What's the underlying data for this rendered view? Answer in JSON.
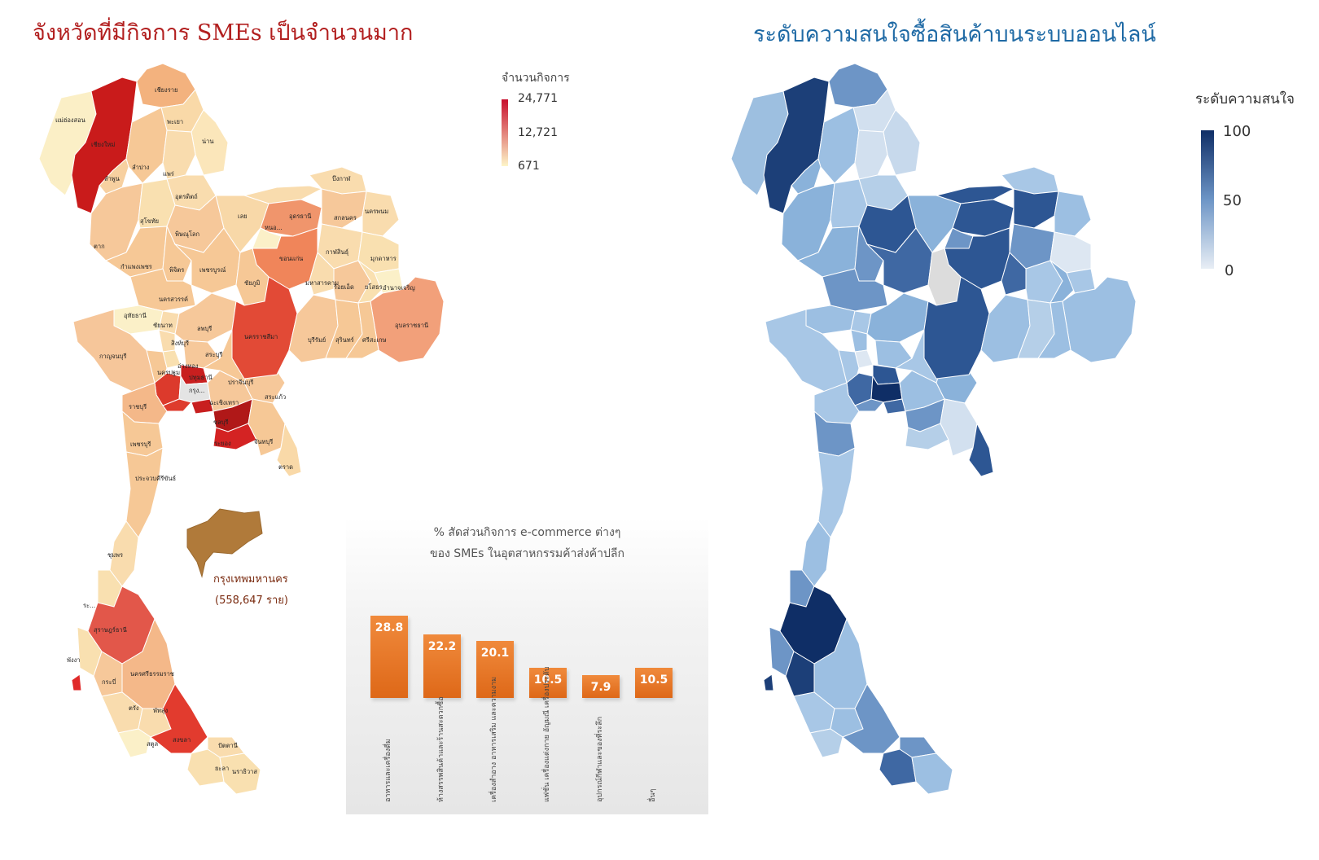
{
  "left_map": {
    "title": "จังหวัดที่มีกิจการ SMEs เป็นจำนวนมาก",
    "legend": {
      "title": "จำนวนกิจการ",
      "ticks": [
        "24,771",
        "12,721",
        "671"
      ],
      "color_high": "#c8102e",
      "color_low": "#fdf5c8"
    },
    "provinces": {
      "chiangrai": "เชียงราย",
      "maehongson": "แม่ฮ่องสอน",
      "phayao": "พะเยา",
      "chiangmai": "เชียงใหม่",
      "nan": "น่าน",
      "lampang": "ลำปาง",
      "lamphun": "ลำพูน",
      "phrae": "แพร่",
      "buengkan": "บึงกาฬ",
      "uttaradit": "อุตรดิตถ์",
      "nakhonphanom": "นครพนม",
      "sukhothai": "สุโขทัย",
      "loei": "เลย",
      "udonthani": "อุดรธานี",
      "sakonnakhon": "สกลนคร",
      "nongbualamphu": "หนอ...",
      "phitsanulok": "พิษณุโลก",
      "tak": "ตาก",
      "kalasin": "กาฬสินธุ์",
      "mukdahan": "มุกดาหาร",
      "khonkaen": "ขอนแก่น",
      "kamphaengphet": "กำแพงเพชร",
      "phichit": "พิจิตร",
      "phetchabun": "เพชรบูรณ์",
      "chaiyaphum": "ชัยภูมิ",
      "mahasarakham": "มหาสารคาม",
      "roiet": "ร้อยเอ็ด",
      "yasothon": "ยโสธร",
      "amnatcharoen": "อำนาจเจริญ",
      "nakhonsawan": "นครสวรรค์",
      "uthaithani": "อุทัยธานี",
      "chainat": "ชัยนาท",
      "ubon": "อุบลราชธานี",
      "lopburi": "ลพบุรี",
      "nakhonratchasima": "นครราชสีมา",
      "buriram": "บุรีรัมย์",
      "surin": "สุรินทร์",
      "sisaket": "ศรีสะเกษ",
      "singburi": "สิงห์บุรี",
      "kanchanaburi": "กาญจนบุรี",
      "saraburi": "สระบุรี",
      "angthong": "อ่างทอง",
      "prachinburi": "ปราจีนบุรี",
      "nakhonpathom": "นครปฐม",
      "pathumthani": "ปทุมธานี",
      "bangkok": "กรุง...",
      "sakaeo": "สระแก้ว",
      "chachoengsao": "ฉะเชิงเทรา",
      "ratchaburi": "ราชบุรี",
      "chonburi": "ชลบุรี",
      "rayong": "ระยอง",
      "chanthaburi": "จันทบุรี",
      "phetchaburi": "เพชรบุรี",
      "trat": "ตราด",
      "prachuap": "ประจวบคีรีขันธ์",
      "chumphon": "ชุมพร",
      "ranong": "ระ...",
      "suratthani": "สุราษฎร์ธานี",
      "phangnga": "พังงา",
      "krabi": "กระบี่",
      "nakhonsithammarat": "นครศรีธรรมราช",
      "trang": "ตรัง",
      "phatthalung": "พัทลุง",
      "songkhla": "สงขลา",
      "satun": "สตูล",
      "pattani": "ปัตตานี",
      "yala": "ยะลา",
      "narathiwat": "นราธิวาส"
    },
    "inset": {
      "name": "กรุงเทพมหานคร",
      "value": "(558,647 ราย)",
      "color": "#b07a3a"
    }
  },
  "chart": {
    "title_line1": "% สัดส่วนกิจการ e-commerce ต่างๆ",
    "title_line2": "ของ SMEs ในอุตสาหกรรมค้าส่งค้าปลีก",
    "chart_data": {
      "type": "bar",
      "categories": [
        "อาหารและเครื่องดื่ม",
        "ห้างสรรพสินค้าและร้านสะดวกซื้อ",
        "เครื่องสำอาง อาหารเสริม และความงาม",
        "แฟชั่น เครื่องแต่งกาย อัญมณี เครื่องประดับ",
        "อุปกรณ์กีฬาและของที่ระลึก",
        "อื่นๆ"
      ],
      "values": [
        28.8,
        22.2,
        20.1,
        10.5,
        7.9,
        10.5
      ],
      "value_labels": [
        "28.8",
        "22.2",
        "20.1",
        "10.5",
        "7.9",
        "10.5"
      ],
      "ylim": [
        0,
        30
      ],
      "bar_color": "#e8731f"
    }
  },
  "right_map": {
    "title": "ระดับความสนใจซื้อสินค้าบนระบบออนไลน์",
    "legend": {
      "title": "ระดับความสนใจ",
      "ticks": [
        "100",
        "50",
        "0"
      ],
      "color_high": "#0f2e66",
      "color_low": "#e8eef5"
    }
  }
}
